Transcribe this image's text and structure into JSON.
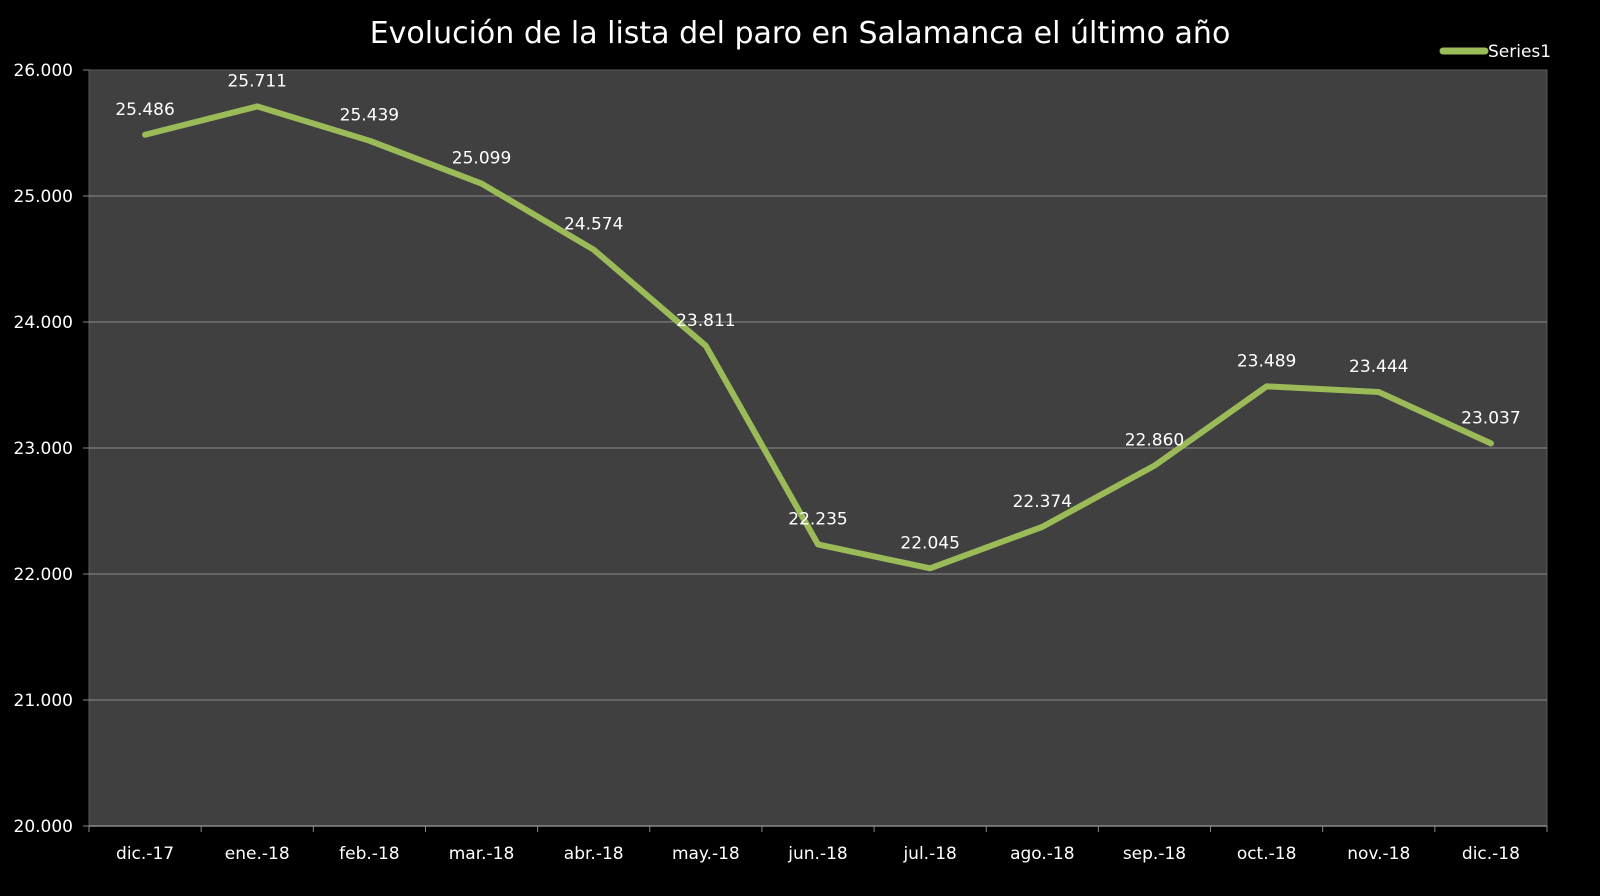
{
  "chart_data": {
    "type": "line",
    "title": "Evolución de la lista del paro en Salamanca el último año",
    "xlabel": "",
    "ylabel": "",
    "categories": [
      "dic.-17",
      "ene.-18",
      "feb.-18",
      "mar.-18",
      "abr.-18",
      "may.-18",
      "jun.-18",
      "jul.-18",
      "ago.-18",
      "sep.-18",
      "oct.-18",
      "nov.-18",
      "dic.-18"
    ],
    "series": [
      {
        "name": "Series1",
        "values": [
          25486,
          25711,
          25439,
          25099,
          24574,
          23811,
          22235,
          22045,
          22374,
          22860,
          23489,
          23444,
          23037
        ],
        "labels": [
          "25.486",
          "25.711",
          "25.439",
          "25.099",
          "24.574",
          "23.811",
          "22.235",
          "22.045",
          "22.374",
          "22.860",
          "23.489",
          "23.444",
          "23.037"
        ],
        "color": "#9bbb59"
      }
    ],
    "ylim": [
      20000,
      26000
    ],
    "yticks": [
      20000,
      21000,
      22000,
      23000,
      24000,
      25000,
      26000
    ],
    "ytick_labels": [
      "20.000",
      "21.000",
      "22.000",
      "23.000",
      "24.000",
      "25.000",
      "26.000"
    ],
    "grid": true,
    "legend": "top-right",
    "plot_bg": "#404040",
    "page_bg": "#000000"
  }
}
